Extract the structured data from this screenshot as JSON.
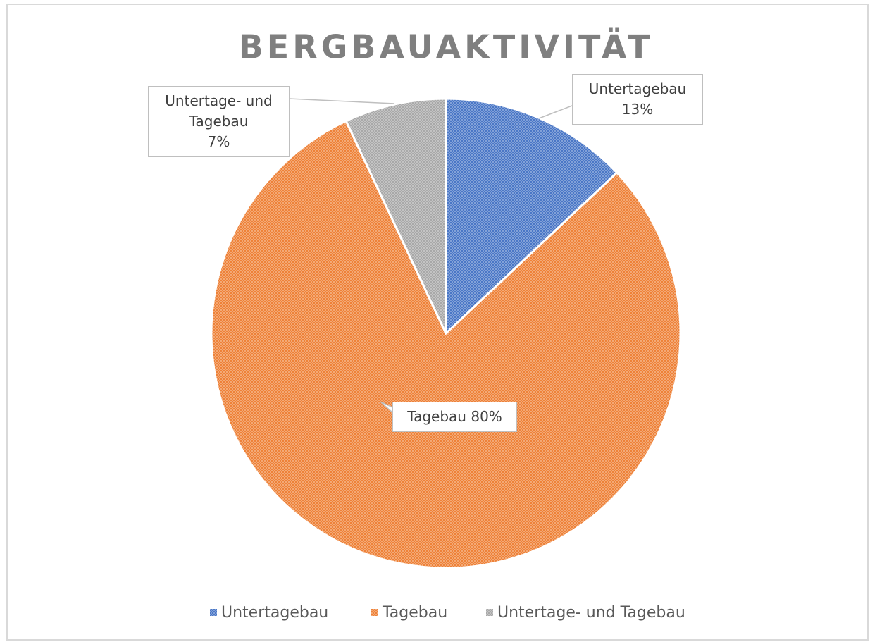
{
  "chart_data": {
    "type": "pie",
    "title": "BERGBAUAKTIVITÄT",
    "categories": [
      "Untertagebau",
      "Tagebau",
      "Untertage- und Tagebau"
    ],
    "values": [
      13,
      80,
      7
    ],
    "value_labels": [
      "13%",
      "80%",
      "7%"
    ],
    "colors": [
      "#4472c4",
      "#ed7d31",
      "#a5a5a5"
    ],
    "legend": "bottom"
  }
}
